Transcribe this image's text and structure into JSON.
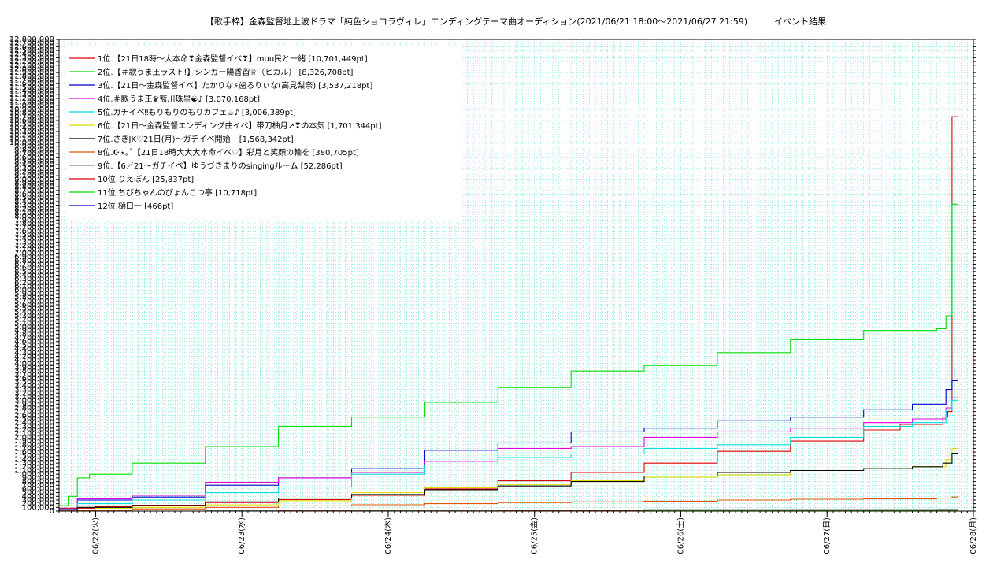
{
  "chart_data": {
    "type": "line",
    "title": "【歌手枠】金森監督地上波ドラマ「純色ショコラヴィレ」エンディングテーマ曲オーディション(2021/06/21 18:00〜2021/06/27 21:59)",
    "subtitle": "イベント結果",
    "x_ticks": [
      "06/22(火)",
      "06/23(水)",
      "06/24(木)",
      "06/25(金)",
      "06/26(土)",
      "06/27(日)",
      "06/28(月)"
    ],
    "x_range": [
      "2021-06-21 18:00",
      "2021-06-28 00:00"
    ],
    "ylim": [
      0,
      12800000
    ],
    "y_tick_step": 100000,
    "y_tick_label_step": 100000,
    "grid": true,
    "legend_position": "top-left",
    "final_hour": 147.5,
    "series": [
      {
        "name": "1位.【21日18時〜大本命❣金森監督イベ❣】muu民と一緒 [10,701,449pt]",
        "color": "#dd0000",
        "points": [
          [
            0,
            80000
          ],
          [
            6,
            120000
          ],
          [
            12,
            160000
          ],
          [
            24,
            230000
          ],
          [
            36,
            310000
          ],
          [
            48,
            430000
          ],
          [
            60,
            600000
          ],
          [
            72,
            820000
          ],
          [
            84,
            1050000
          ],
          [
            96,
            1300000
          ],
          [
            108,
            1620000
          ],
          [
            120,
            1900000
          ],
          [
            132,
            2200000
          ],
          [
            138,
            2350000
          ],
          [
            145,
            2550000
          ],
          [
            145.8,
            2700000
          ],
          [
            146.5,
            10701449
          ],
          [
            147.5,
            10701449
          ]
        ]
      },
      {
        "name": "2位.【＃歌うま王ラスト!】シンガー陽香留♕（ヒカル） [8,326,708pt]",
        "color": "#00dd00",
        "points": [
          [
            0,
            150000
          ],
          [
            1.5,
            400000
          ],
          [
            3,
            900000
          ],
          [
            5,
            1000000
          ],
          [
            12,
            1300000
          ],
          [
            24,
            1750000
          ],
          [
            36,
            2300000
          ],
          [
            48,
            2550000
          ],
          [
            60,
            2950000
          ],
          [
            72,
            3350000
          ],
          [
            84,
            3800000
          ],
          [
            96,
            3950000
          ],
          [
            108,
            4300000
          ],
          [
            120,
            4650000
          ],
          [
            132,
            4900000
          ],
          [
            144,
            4950000
          ],
          [
            145.5,
            5300000
          ],
          [
            146.5,
            8326708
          ],
          [
            147.5,
            8326708
          ]
        ]
      },
      {
        "name": "3位.【21日〜金森監督イベ】たかりな⚡歯ろりぃな(高見梨奈) [3,537,218pt]",
        "color": "#0000cc",
        "points": [
          [
            0,
            60000
          ],
          [
            3,
            300000
          ],
          [
            12,
            380000
          ],
          [
            24,
            700000
          ],
          [
            36,
            900000
          ],
          [
            48,
            1150000
          ],
          [
            60,
            1650000
          ],
          [
            72,
            1850000
          ],
          [
            84,
            2150000
          ],
          [
            96,
            2250000
          ],
          [
            108,
            2450000
          ],
          [
            120,
            2550000
          ],
          [
            132,
            2750000
          ],
          [
            140,
            2900000
          ],
          [
            145.5,
            3300000
          ],
          [
            146.5,
            3537218
          ],
          [
            147.5,
            3537218
          ]
        ]
      },
      {
        "name": "4位.＃歌うま王♛藍川珠里☯︎♪ [3,070,168pt]",
        "color": "#dd00dd",
        "points": [
          [
            0,
            60000
          ],
          [
            3,
            330000
          ],
          [
            12,
            430000
          ],
          [
            24,
            780000
          ],
          [
            36,
            900000
          ],
          [
            48,
            1050000
          ],
          [
            60,
            1350000
          ],
          [
            72,
            1700000
          ],
          [
            84,
            1750000
          ],
          [
            96,
            2000000
          ],
          [
            108,
            2150000
          ],
          [
            120,
            2250000
          ],
          [
            132,
            2400000
          ],
          [
            140,
            2500000
          ],
          [
            145.5,
            2800000
          ],
          [
            146.5,
            3070168
          ],
          [
            147.5,
            3070168
          ]
        ]
      },
      {
        "name": "5位.ガチイベ‼もりもりのもりカフェ☕♪ [3,006,389pt]",
        "color": "#00dddd",
        "points": [
          [
            0,
            40000
          ],
          [
            3,
            200000
          ],
          [
            12,
            300000
          ],
          [
            24,
            500000
          ],
          [
            36,
            650000
          ],
          [
            48,
            1000000
          ],
          [
            60,
            1250000
          ],
          [
            72,
            1450000
          ],
          [
            84,
            1550000
          ],
          [
            96,
            1700000
          ],
          [
            108,
            1800000
          ],
          [
            120,
            2000000
          ],
          [
            132,
            2300000
          ],
          [
            140,
            2400000
          ],
          [
            145.5,
            2750000
          ],
          [
            146.5,
            3006389
          ],
          [
            147.5,
            3006389
          ]
        ]
      },
      {
        "name": "6位.【21日〜金森監督エンディング曲イベ】帯刀柚月↗❣の本気 [1,701,344pt]",
        "color": "#dddd00",
        "points": [
          [
            0,
            30000
          ],
          [
            6,
            80000
          ],
          [
            12,
            100000
          ],
          [
            24,
            170000
          ],
          [
            36,
            280000
          ],
          [
            48,
            500000
          ],
          [
            60,
            630000
          ],
          [
            72,
            720000
          ],
          [
            84,
            820000
          ],
          [
            96,
            920000
          ],
          [
            108,
            980000
          ],
          [
            120,
            1100000
          ],
          [
            132,
            1150000
          ],
          [
            140,
            1200000
          ],
          [
            145.5,
            1400000
          ],
          [
            146.5,
            1701344
          ],
          [
            147.5,
            1701344
          ]
        ]
      },
      {
        "name": "7位.さきJK♡21日(月)〜ガチイベ開始!! [1,568,342pt]",
        "color": "#000000",
        "points": [
          [
            0,
            20000
          ],
          [
            3,
            100000
          ],
          [
            12,
            150000
          ],
          [
            24,
            250000
          ],
          [
            36,
            350000
          ],
          [
            48,
            450000
          ],
          [
            60,
            580000
          ],
          [
            72,
            680000
          ],
          [
            84,
            800000
          ],
          [
            96,
            950000
          ],
          [
            108,
            1050000
          ],
          [
            120,
            1100000
          ],
          [
            132,
            1150000
          ],
          [
            140,
            1200000
          ],
          [
            145,
            1300000
          ],
          [
            146.5,
            1568342
          ],
          [
            147.5,
            1568342
          ]
        ]
      },
      {
        "name": "8位.☪︎⋆｡˚【21日18時大大大本命イベ♡】彩月と笑顔の輪を [380,705pt]",
        "color": "#dd5500",
        "points": [
          [
            0,
            10000
          ],
          [
            12,
            60000
          ],
          [
            24,
            100000
          ],
          [
            36,
            140000
          ],
          [
            48,
            170000
          ],
          [
            60,
            200000
          ],
          [
            72,
            230000
          ],
          [
            84,
            250000
          ],
          [
            96,
            270000
          ],
          [
            108,
            300000
          ],
          [
            120,
            320000
          ],
          [
            132,
            330000
          ],
          [
            144,
            350000
          ],
          [
            146.5,
            380705
          ],
          [
            147.5,
            380705
          ]
        ]
      },
      {
        "name": "9位.【6／21〜ガチイベ】ゆうづきまりのsingingルーム [52,286pt]",
        "color": "#888888",
        "points": [
          [
            0,
            0
          ],
          [
            24,
            10000
          ],
          [
            48,
            20000
          ],
          [
            72,
            30000
          ],
          [
            96,
            40000
          ],
          [
            120,
            45000
          ],
          [
            144,
            50000
          ],
          [
            147.5,
            52286
          ]
        ]
      },
      {
        "name": "10位.りえぽん [25,837pt]",
        "color": "#dd0000",
        "points": [
          [
            0,
            0
          ],
          [
            36,
            5000
          ],
          [
            72,
            10000
          ],
          [
            108,
            18000
          ],
          [
            144,
            24000
          ],
          [
            147.5,
            25837
          ]
        ]
      },
      {
        "name": "11位.ちびちゃんのぴょんこつ亭 [10,718pt]",
        "color": "#00dd00",
        "points": [
          [
            0,
            0
          ],
          [
            48,
            3000
          ],
          [
            96,
            7000
          ],
          [
            147.5,
            10718
          ]
        ]
      },
      {
        "name": "12位.樋口一 [466pt]",
        "color": "#0000cc",
        "points": [
          [
            0,
            0
          ],
          [
            147.5,
            466
          ]
        ]
      }
    ]
  },
  "colors": {
    "grid": "#55e0c8",
    "axis": "#000000"
  }
}
